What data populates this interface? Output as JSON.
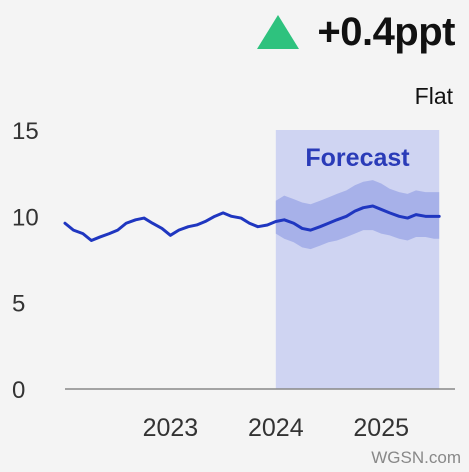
{
  "header": {
    "change_value": "+0.4ppt",
    "change_direction_icon": "up-triangle-icon",
    "trend_label": "Flat",
    "up_color": "#2ec27e"
  },
  "watermark": "WGSN.com",
  "chart_data": {
    "type": "line",
    "title": "",
    "xlabel": "",
    "ylabel": "",
    "ylim": [
      0,
      15
    ],
    "xlim": [
      2022.0,
      2025.7
    ],
    "y_ticks": [
      0,
      5,
      10,
      15
    ],
    "x_ticks": [
      2023,
      2024,
      2025
    ],
    "grid": false,
    "forecast_region": {
      "start": 2024.0,
      "end": 2025.55,
      "label": "Forecast",
      "color": "#cfd4f2",
      "label_color": "#2a3bb8"
    },
    "line_color": "#1f36c0",
    "band_color": "#9aa6e6",
    "series": [
      {
        "x": [
          2022.0,
          2022.08,
          2022.17,
          2022.25,
          2022.33,
          2022.42,
          2022.5,
          2022.58,
          2022.67,
          2022.75,
          2022.83,
          2022.92,
          2023.0,
          2023.08,
          2023.17,
          2023.25,
          2023.33,
          2023.42,
          2023.5,
          2023.58,
          2023.67,
          2023.75,
          2023.83,
          2023.92,
          2024.0,
          2024.08,
          2024.17,
          2024.25,
          2024.33,
          2024.42,
          2024.5,
          2024.58,
          2024.67,
          2024.75,
          2024.83,
          2024.92,
          2025.0,
          2025.08,
          2025.17,
          2025.25,
          2025.33,
          2025.42,
          2025.5,
          2025.55
        ],
        "values": [
          9.6,
          9.2,
          9.0,
          8.6,
          8.8,
          9.0,
          9.2,
          9.6,
          9.8,
          9.9,
          9.6,
          9.3,
          8.9,
          9.2,
          9.4,
          9.5,
          9.7,
          10.0,
          10.2,
          10.0,
          9.9,
          9.6,
          9.4,
          9.5,
          9.7,
          9.8,
          9.6,
          9.3,
          9.2,
          9.4,
          9.6,
          9.8,
          10.0,
          10.3,
          10.5,
          10.6,
          10.4,
          10.2,
          10.0,
          9.9,
          10.1,
          10.0,
          10.0,
          10.0
        ],
        "upper": [
          null,
          null,
          null,
          null,
          null,
          null,
          null,
          null,
          null,
          null,
          null,
          null,
          null,
          null,
          null,
          null,
          null,
          null,
          null,
          null,
          null,
          null,
          null,
          null,
          10.9,
          11.2,
          11.0,
          10.8,
          10.7,
          10.9,
          11.1,
          11.3,
          11.5,
          11.8,
          12.0,
          12.1,
          11.9,
          11.6,
          11.4,
          11.3,
          11.5,
          11.4,
          11.4,
          11.4
        ],
        "lower": [
          null,
          null,
          null,
          null,
          null,
          null,
          null,
          null,
          null,
          null,
          null,
          null,
          null,
          null,
          null,
          null,
          null,
          null,
          null,
          null,
          null,
          null,
          null,
          null,
          9.0,
          8.7,
          8.5,
          8.2,
          8.1,
          8.3,
          8.5,
          8.6,
          8.8,
          9.0,
          9.2,
          9.2,
          9.0,
          8.9,
          8.7,
          8.6,
          8.8,
          8.8,
          8.7,
          8.7
        ]
      }
    ]
  }
}
